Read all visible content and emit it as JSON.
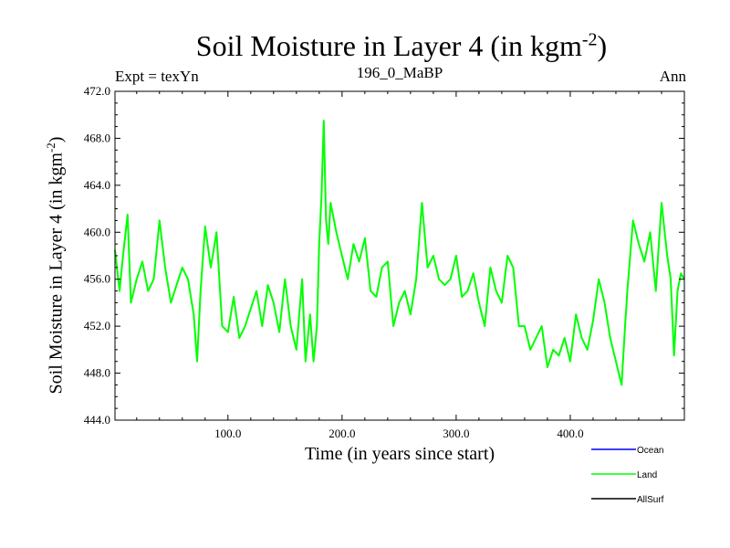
{
  "header": {
    "title_main": "Soil Moisture in Layer 4 (in kgm",
    "title_sup": "-2",
    "title_end": ")",
    "expt": "Expt = texYn",
    "subtitle": "196_0_MaBP",
    "period": "Ann"
  },
  "axes": {
    "xlabel": "Time (in years since start)",
    "ylabel_main": "Soil Moisture in Layer 4 (in kgm",
    "ylabel_sup": "-2",
    "ylabel_end": ")"
  },
  "legend": [
    {
      "name": "Ocean",
      "color": "#0000ff"
    },
    {
      "name": "Land",
      "color": "#00ff00"
    },
    {
      "name": "AllSurf",
      "color": "#000000"
    }
  ],
  "chart_data": {
    "type": "line",
    "title": "Soil Moisture in Layer 4 (in kgm-2)",
    "xlabel": "Time (in years since start)",
    "ylabel": "Soil Moisture in Layer 4 (in kgm-2)",
    "xlim": [
      1,
      500
    ],
    "ylim": [
      444.0,
      472.0
    ],
    "x_ticks": [
      100,
      200,
      300,
      400
    ],
    "x_tick_labels": [
      "100.0",
      "200.0",
      "300.0",
      "400.0"
    ],
    "y_ticks": [
      444,
      448,
      452,
      456,
      460,
      464,
      468,
      472
    ],
    "y_tick_labels": [
      "444.0",
      "448.0",
      "452.0",
      "456.0",
      "460.0",
      "464.0",
      "468.0",
      "472.0"
    ],
    "grid": false,
    "legend_position": "bottom-right",
    "series": [
      {
        "name": "Land",
        "color": "#00ff00",
        "x": [
          1,
          5,
          8,
          12,
          15,
          20,
          25,
          30,
          35,
          40,
          45,
          50,
          55,
          60,
          65,
          70,
          73,
          76,
          80,
          85,
          90,
          95,
          100,
          105,
          110,
          115,
          120,
          125,
          130,
          135,
          140,
          145,
          150,
          155,
          160,
          165,
          168,
          172,
          175,
          178,
          180,
          182,
          184,
          186,
          188,
          190,
          195,
          200,
          205,
          210,
          215,
          220,
          225,
          230,
          235,
          240,
          245,
          250,
          255,
          260,
          265,
          270,
          275,
          280,
          285,
          290,
          295,
          300,
          305,
          310,
          315,
          320,
          325,
          330,
          335,
          340,
          345,
          350,
          355,
          360,
          365,
          370,
          375,
          380,
          385,
          390,
          395,
          400,
          405,
          410,
          415,
          420,
          425,
          430,
          435,
          440,
          445,
          448,
          450,
          455,
          460,
          465,
          470,
          475,
          480,
          485,
          488,
          491,
          494,
          497,
          500
        ],
        "y": [
          458.5,
          455.0,
          458.0,
          461.5,
          454.0,
          456.0,
          457.5,
          455.0,
          456.0,
          461.0,
          457.0,
          454.0,
          455.5,
          457.0,
          456.0,
          453.0,
          449.0,
          455.0,
          460.5,
          457.0,
          460.0,
          452.0,
          451.5,
          454.5,
          451.0,
          452.0,
          453.5,
          455.0,
          452.0,
          455.5,
          454.0,
          451.5,
          456.0,
          452.0,
          450.0,
          456.0,
          449.0,
          453.0,
          449.0,
          452.0,
          459.0,
          463.0,
          469.5,
          461.0,
          459.0,
          462.5,
          460.0,
          458.0,
          456.0,
          459.0,
          457.5,
          459.5,
          455.0,
          454.5,
          457.0,
          457.5,
          452.0,
          454.0,
          455.0,
          453.0,
          456.0,
          462.5,
          457.0,
          458.0,
          456.0,
          455.5,
          456.0,
          458.0,
          454.5,
          455.0,
          456.5,
          454.0,
          452.0,
          457.0,
          455.0,
          454.0,
          458.0,
          457.0,
          452.0,
          452.0,
          450.0,
          451.0,
          452.0,
          448.5,
          450.0,
          449.5,
          451.0,
          449.0,
          453.0,
          451.0,
          450.0,
          452.5,
          456.0,
          454.0,
          451.0,
          449.0,
          447.0,
          452.0,
          455.0,
          461.0,
          459.0,
          457.5,
          460.0,
          455.0,
          462.5,
          458.0,
          456.0,
          449.5,
          455.0,
          456.5,
          456.0
        ]
      }
    ]
  }
}
